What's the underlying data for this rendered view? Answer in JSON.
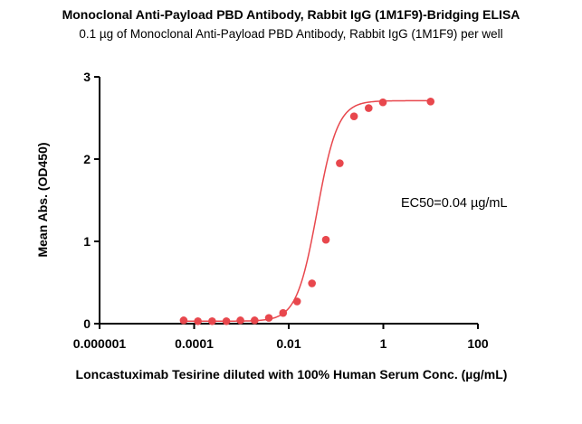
{
  "chart_data": {
    "type": "scatter",
    "title": "Monoclonal Anti-Payload PBD Antibody, Rabbit IgG (1M1F9)-Bridging ELISA",
    "subtitle": "0.1 µg of Monoclonal Anti-Payload PBD Antibody, Rabbit IgG (1M1F9) per well",
    "xlabel": "Loncastuximab Tesirine diluted with 100% Human Serum Conc. (µg/mL)",
    "ylabel": "Mean Abs. (OD450)",
    "x_scale": "log",
    "xlim": [
      1e-06,
      100
    ],
    "ylim": [
      0,
      3
    ],
    "x_ticks": [
      1e-06,
      0.0001,
      0.01,
      1,
      100
    ],
    "x_tick_labels": [
      "0.000001",
      "0.0001",
      "0.01",
      "1",
      "100"
    ],
    "y_ticks": [
      0,
      1,
      2,
      3
    ],
    "y_tick_labels": [
      "0",
      "1",
      "2",
      "3"
    ],
    "grid": false,
    "series": [
      {
        "color": "#e8474d",
        "x": [
          6e-05,
          0.00012,
          0.00024,
          0.00048,
          0.00095,
          0.0019,
          0.0038,
          0.0076,
          0.015,
          0.031,
          0.061,
          0.12,
          0.24,
          0.49,
          0.98,
          10
        ],
        "y": [
          0.04,
          0.03,
          0.03,
          0.03,
          0.04,
          0.04,
          0.07,
          0.13,
          0.27,
          0.49,
          1.02,
          1.95,
          2.52,
          2.62,
          2.69,
          2.7
        ]
      }
    ],
    "fit": {
      "model": "4PL",
      "bottom": 0.03,
      "top": 2.71,
      "ec50": 0.04,
      "hill": 2.0,
      "color": "#e8474d"
    },
    "annotation": "EC50=0.04 µg/mL"
  }
}
